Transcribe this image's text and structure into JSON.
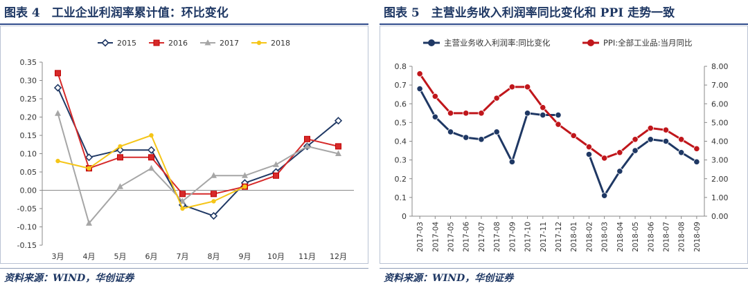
{
  "left": {
    "title": "图表 4　工业企业利润率累计值：环比变化",
    "source": "资料来源：WIND，华创证券",
    "chart_data": {
      "type": "line",
      "categories": [
        "3月",
        "4月",
        "5月",
        "6月",
        "7月",
        "8月",
        "9月",
        "10月",
        "11月",
        "12月"
      ],
      "ylim": [
        -0.15,
        0.35
      ],
      "yticks": [
        "0.35",
        "0.30",
        "0.25",
        "0.20",
        "0.15",
        "0.10",
        "0.05",
        "0.00",
        "-0.05",
        "-0.10",
        "-0.15"
      ],
      "series": [
        {
          "name": "2015",
          "color": "#1f3864",
          "marker": "diamond",
          "values": [
            0.28,
            0.09,
            0.11,
            0.11,
            -0.04,
            -0.07,
            0.02,
            0.05,
            0.12,
            0.19
          ]
        },
        {
          "name": "2016",
          "color": "#d62a2a",
          "marker": "square",
          "values": [
            0.32,
            0.06,
            0.09,
            0.09,
            -0.01,
            -0.01,
            0.01,
            0.04,
            0.14,
            0.12
          ]
        },
        {
          "name": "2017",
          "color": "#a6a6a6",
          "marker": "triangle",
          "values": [
            0.21,
            -0.09,
            0.01,
            0.06,
            -0.03,
            0.04,
            0.04,
            0.07,
            0.12,
            0.1
          ]
        },
        {
          "name": "2018",
          "color": "#f5c518",
          "marker": "circle",
          "values": [
            0.08,
            0.06,
            0.12,
            0.15,
            -0.05,
            -0.03,
            0.01,
            null,
            null,
            null
          ]
        }
      ]
    }
  },
  "right": {
    "title": "图表 5　主营业务收入利润率同比变化和 PPI 走势一致",
    "source": "资料来源：WIND，华创证券",
    "chart_data": {
      "type": "line",
      "categories": [
        "2017-03",
        "2017-04",
        "2017-05",
        "2017-06",
        "2017-07",
        "2017-08",
        "2017-09",
        "2017-10",
        "2017-11",
        "2017-12",
        "2018-01",
        "2018-02",
        "2018-03",
        "2018-04",
        "2018-05",
        "2018-06",
        "2018-07",
        "2018-08",
        "2018-09"
      ],
      "ylim_left": [
        0,
        0.8
      ],
      "ylim_right": [
        0,
        8
      ],
      "yticks_left": [
        "0.8",
        "0.7",
        "0.6",
        "0.5",
        "0.4",
        "0.3",
        "0.2",
        "0.1",
        "0"
      ],
      "yticks_right": [
        "8.00",
        "7.00",
        "6.00",
        "5.00",
        "4.00",
        "3.00",
        "2.00",
        "1.00",
        "0.00"
      ],
      "series": [
        {
          "name": "主营业务收入利润率:同比变化",
          "axis": "left",
          "color": "#1f3864",
          "values": [
            0.68,
            0.53,
            0.45,
            0.42,
            0.41,
            0.45,
            0.29,
            0.55,
            0.54,
            0.54,
            null,
            0.33,
            0.11,
            0.24,
            0.35,
            0.41,
            0.4,
            0.34,
            0.29
          ]
        },
        {
          "name": "PPI:全部工业品:当月同比",
          "axis": "right",
          "color": "#c0161b",
          "values": [
            7.6,
            6.4,
            5.5,
            5.5,
            5.5,
            6.3,
            6.9,
            6.9,
            5.8,
            4.9,
            4.3,
            3.7,
            3.1,
            3.4,
            4.1,
            4.7,
            4.6,
            4.1,
            3.6
          ]
        }
      ]
    }
  }
}
